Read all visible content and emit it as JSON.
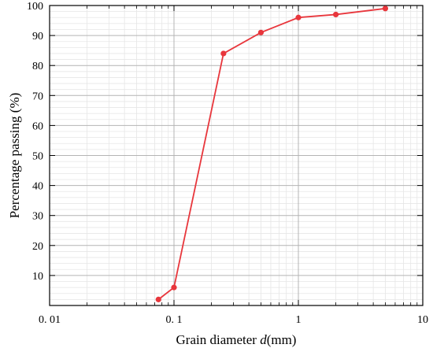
{
  "chart_data": {
    "type": "line",
    "title": "",
    "xlabel_main": "Grain diameter ",
    "xlabel_var": "d",
    "xlabel_unit": "(mm)",
    "ylabel": "Percentage passing (%)",
    "x_scale": "log",
    "xlim": [
      0.01,
      10
    ],
    "ylim": [
      0,
      100
    ],
    "x_ticks": [
      0.01,
      0.1,
      1,
      10
    ],
    "x_tick_labels": [
      "0. 01",
      "0. 1",
      "1",
      "10"
    ],
    "y_ticks": [
      10,
      20,
      30,
      40,
      50,
      60,
      70,
      80,
      90,
      100
    ],
    "y_tick_labels": [
      "10",
      "20",
      "30",
      "40",
      "50",
      "60",
      "70",
      "80",
      "90",
      "100"
    ],
    "grid": true,
    "color": "#e8363c",
    "series": [
      {
        "x": [
          0.075,
          0.1,
          0.25,
          0.5,
          1,
          2,
          5
        ],
        "y": [
          2,
          6,
          84,
          91,
          96,
          97,
          99
        ]
      }
    ]
  }
}
